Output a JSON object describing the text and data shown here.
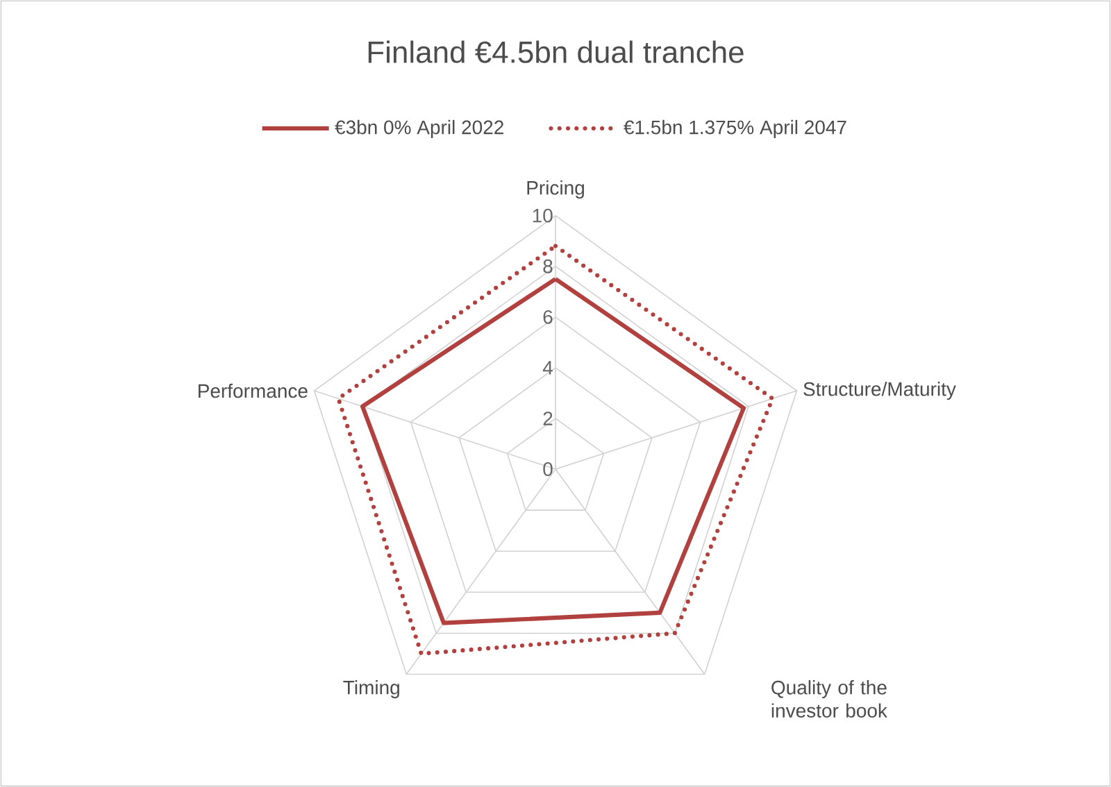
{
  "chart_data": {
    "type": "radar",
    "title": "Finland €4.5bn dual tranche",
    "categories": [
      "Pricing",
      "Structure/Maturity",
      "Quality of the investor book",
      "Timing",
      "Performance"
    ],
    "series": [
      {
        "name": "€3bn 0% April 2022",
        "color": "#b0413e",
        "line_style": "solid",
        "values": [
          7.5,
          7.8,
          7.0,
          7.5,
          8.0
        ]
      },
      {
        "name": "€1.5bn 1.375% April 2047",
        "color": "#b0413e",
        "line_style": "dotted",
        "values": [
          8.8,
          9.0,
          8.0,
          9.0,
          9.0
        ]
      }
    ],
    "ylim": [
      0,
      10
    ],
    "yticks": [
      0,
      2,
      4,
      6,
      8,
      10
    ],
    "grid": true,
    "legend": "top",
    "marker": "none"
  }
}
